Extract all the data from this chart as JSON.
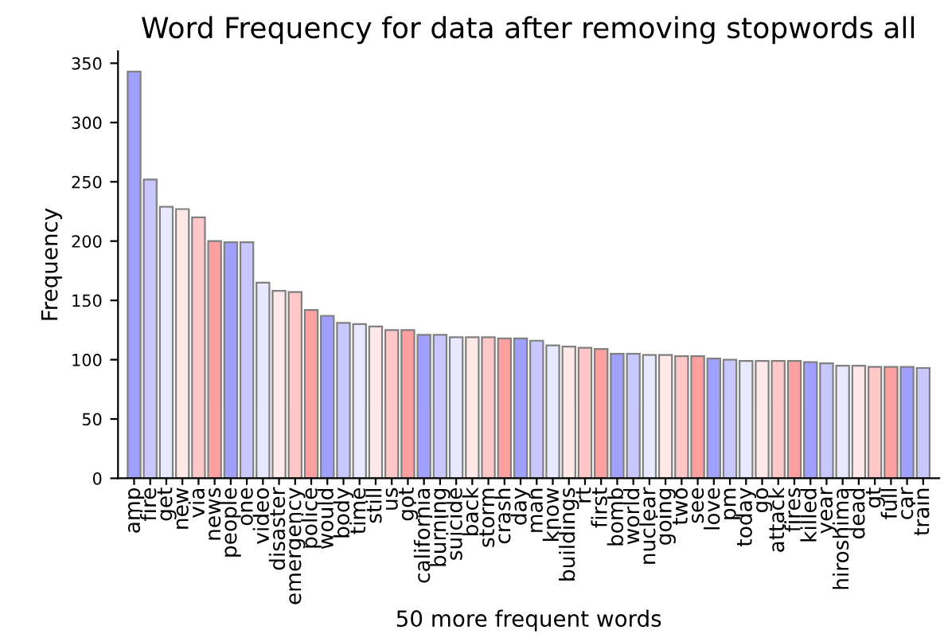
{
  "chart_data": {
    "type": "bar",
    "title": "Word Frequency for data after removing stopwords all",
    "xlabel": "50 more frequent words",
    "ylabel": "Frequency",
    "categories": [
      "amp",
      "fire",
      "get",
      "new",
      "via",
      "news",
      "people",
      "one",
      "video",
      "disaster",
      "emergency",
      "police",
      "would",
      "body",
      "time",
      "still",
      "us",
      "got",
      "california",
      "burning",
      "suicide",
      "back",
      "storm",
      "crash",
      "day",
      "man",
      "know",
      "buildings",
      "rt",
      "first",
      "bomb",
      "world",
      "nuclear",
      "going",
      "two",
      "see",
      "love",
      "pm",
      "today",
      "go",
      "attack",
      "fires",
      "killed",
      "year",
      "hiroshima",
      "dead",
      "gt",
      "full",
      "car",
      "train"
    ],
    "values": [
      343,
      252,
      229,
      227,
      220,
      200,
      199,
      199,
      165,
      158,
      157,
      142,
      137,
      131,
      130,
      128,
      125,
      125,
      121,
      121,
      119,
      119,
      119,
      118,
      118,
      116,
      112,
      111,
      110,
      109,
      105,
      105,
      104,
      104,
      103,
      103,
      101,
      100,
      99,
      99,
      99,
      99,
      98,
      97,
      95,
      95,
      94,
      94,
      94,
      93
    ],
    "colors": [
      "#a0a0ff",
      "#c8c8ff",
      "#e8e8ff",
      "#ffe8e8",
      "#ffc8c8",
      "#ffa0a0",
      "#a0a0ff",
      "#c8c8ff",
      "#e8e8ff",
      "#ffe8e8",
      "#ffc8c8",
      "#ffa0a0",
      "#a0a0ff",
      "#c8c8ff",
      "#e8e8ff",
      "#ffe8e8",
      "#ffc8c8",
      "#ffa0a0",
      "#a0a0ff",
      "#c8c8ff",
      "#e8e8ff",
      "#ffe8e8",
      "#ffc8c8",
      "#ffa0a0",
      "#a0a0ff",
      "#c8c8ff",
      "#e8e8ff",
      "#ffe8e8",
      "#ffc8c8",
      "#ffa0a0",
      "#a0a0ff",
      "#c8c8ff",
      "#e8e8ff",
      "#ffe8e8",
      "#ffc8c8",
      "#ffa0a0",
      "#a0a0ff",
      "#c8c8ff",
      "#e8e8ff",
      "#ffe8e8",
      "#ffc8c8",
      "#ffa0a0",
      "#a0a0ff",
      "#c8c8ff",
      "#e8e8ff",
      "#ffe8e8",
      "#ffc8c8",
      "#ffa0a0",
      "#a0a0ff",
      "#c8c8ff"
    ],
    "ylim": [
      0,
      360
    ],
    "yticks": [
      0,
      50,
      100,
      150,
      200,
      250,
      300,
      350
    ],
    "grid": false,
    "legend": false
  }
}
